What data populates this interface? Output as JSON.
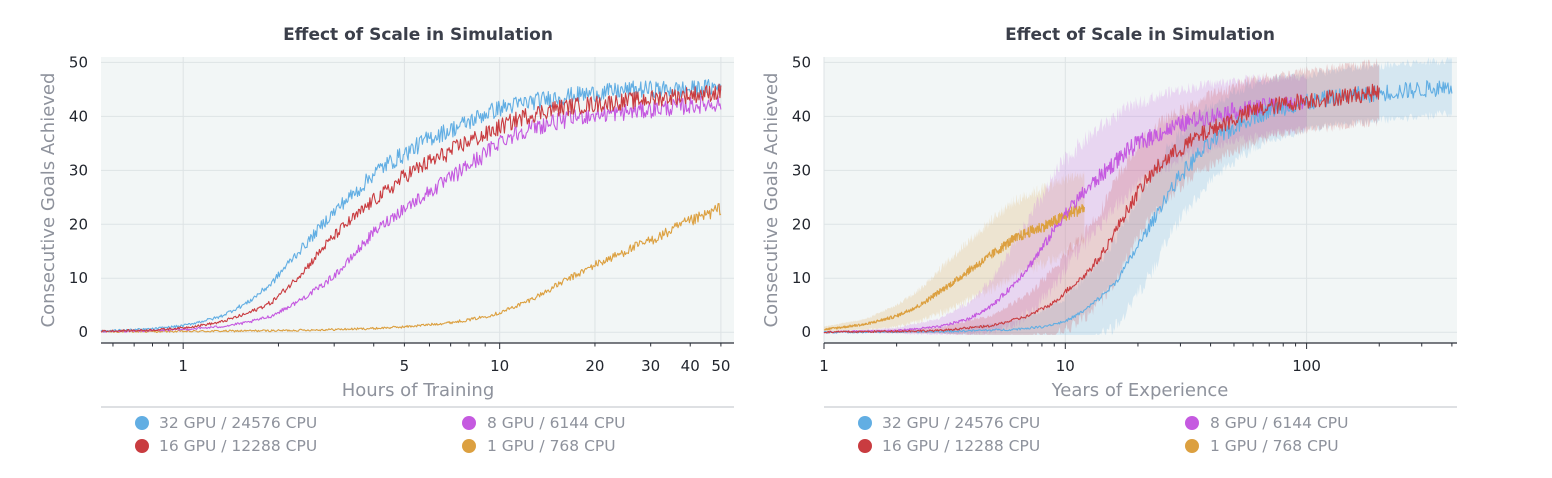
{
  "colors": {
    "series_1": "#62aee3",
    "series_2": "#c93c40",
    "series_3": "#c55ae0",
    "series_4": "#dca040",
    "plot_background": "#f2f6f6",
    "grid": "#dde3e5",
    "axis": "#2b2f38"
  },
  "chart_data": [
    {
      "type": "line",
      "title": "Effect of Scale in Simulation",
      "xlabel": "Hours of Training",
      "ylabel": "Consecutive Goals Achieved",
      "xscale": "log",
      "xlim": [
        0.55,
        55
      ],
      "ylim": [
        -2,
        51
      ],
      "xticks": [
        1,
        5,
        10,
        20,
        30,
        40,
        50
      ],
      "yticks": [
        0,
        10,
        20,
        30,
        40,
        50
      ],
      "grid": true,
      "legend_position": "bottom",
      "series": [
        {
          "name": "32 GPU / 24576 CPU",
          "color": "#62aee3",
          "x": [
            0.55,
            0.8,
            1,
            1.3,
            1.6,
            1.9,
            2.2,
            2.5,
            2.8,
            3.2,
            3.6,
            4,
            4.5,
            5,
            6,
            7,
            8,
            9,
            10,
            12,
            15,
            18,
            22,
            27,
            33,
            40,
            50
          ],
          "y": [
            0.2,
            0.6,
            1.2,
            2.8,
            5.5,
            9,
            13.5,
            17,
            20.5,
            24,
            26.5,
            29.5,
            31.5,
            33,
            36,
            37.5,
            39,
            40.5,
            41.5,
            42.5,
            43.5,
            44,
            44.5,
            45,
            45,
            45,
            45.5
          ]
        },
        {
          "name": "16 GPU / 12288 CPU",
          "color": "#c93c40",
          "x": [
            0.55,
            0.8,
            1,
            1.3,
            1.6,
            1.9,
            2.2,
            2.5,
            2.8,
            3.2,
            3.6,
            4,
            4.5,
            5,
            6,
            7,
            8,
            9,
            10,
            12,
            15,
            18,
            22,
            27,
            33,
            40,
            50
          ],
          "y": [
            0.2,
            0.4,
            0.8,
            1.8,
            3.5,
            5.5,
            9,
            12.5,
            16,
            19.5,
            22,
            24.5,
            26.5,
            29,
            31.5,
            33.5,
            35.5,
            36.5,
            38,
            40,
            41.5,
            42,
            42.5,
            43,
            43.5,
            44,
            44.5
          ]
        },
        {
          "name": "8 GPU / 6144 CPU",
          "color": "#c55ae0",
          "x": [
            0.55,
            0.8,
            1,
            1.3,
            1.6,
            1.9,
            2.2,
            2.5,
            2.8,
            3.2,
            3.6,
            4,
            4.5,
            5,
            6,
            7,
            8,
            9,
            10,
            12,
            15,
            18,
            22,
            27,
            33,
            40,
            50
          ],
          "y": [
            0.1,
            0.3,
            0.5,
            1,
            1.8,
            3,
            5,
            7,
            9,
            12,
            15.5,
            18.5,
            21,
            23,
            26,
            28.5,
            31,
            33,
            35.5,
            37.5,
            39,
            40,
            40.5,
            41,
            41.5,
            42,
            42.5
          ]
        },
        {
          "name": "1 GPU / 768 CPU",
          "color": "#dca040",
          "x": [
            0.55,
            1,
            2,
            3,
            4,
            5,
            6,
            7,
            8,
            9,
            10,
            12,
            14,
            16,
            18,
            20,
            23,
            26,
            30,
            34,
            38,
            42,
            46,
            50
          ],
          "y": [
            0.1,
            0.15,
            0.3,
            0.5,
            0.7,
            1,
            1.4,
            1.8,
            2.3,
            2.9,
            3.6,
            5.5,
            7.5,
            9.5,
            11,
            12.5,
            14,
            15.5,
            17,
            18.5,
            20,
            21,
            22,
            23
          ]
        }
      ]
    },
    {
      "type": "line",
      "title": "Effect of Scale in Simulation",
      "xlabel": "Years of Experience",
      "ylabel": "Consecutive Goals Achieved",
      "xscale": "log",
      "xlim": [
        1,
        420
      ],
      "ylim": [
        -2,
        51
      ],
      "xticks": [
        1,
        10,
        100
      ],
      "yticks": [
        0,
        10,
        20,
        30,
        40,
        50
      ],
      "grid": true,
      "legend_position": "bottom",
      "shaded_bands": true,
      "series": [
        {
          "name": "32 GPU / 24576 CPU",
          "color": "#62aee3",
          "x": [
            1,
            3,
            6,
            8,
            10,
            12,
            14,
            16,
            18,
            20,
            23,
            26,
            30,
            35,
            40,
            50,
            60,
            75,
            100,
            130,
            170,
            220,
            300,
            400
          ],
          "y": [
            0,
            0.1,
            0.5,
            1,
            2,
            4,
            6.5,
            9,
            12.5,
            16,
            20.5,
            25,
            29,
            32.5,
            35,
            38,
            40,
            41.5,
            42.5,
            43.5,
            44,
            44.5,
            45,
            45.5
          ],
          "band": [
            0,
            0.3,
            1.5,
            3,
            4.5,
            6,
            7,
            8,
            8.5,
            9,
            9,
            8.5,
            8,
            7.5,
            7,
            6.5,
            6,
            5.5,
            5,
            5,
            5,
            5,
            5,
            5
          ]
        },
        {
          "name": "16 GPU / 12288 CPU",
          "color": "#c93c40",
          "x": [
            1,
            3,
            5,
            7,
            9,
            10,
            12,
            14,
            16,
            18,
            20,
            23,
            26,
            30,
            35,
            40,
            50,
            60,
            75,
            100,
            130,
            160,
            200
          ],
          "y": [
            0,
            0.3,
            1.2,
            3,
            5.5,
            7.5,
            10.5,
            14,
            18.5,
            22.5,
            26,
            29.5,
            32,
            34,
            36,
            37.5,
            39.5,
            41,
            42,
            43,
            43.5,
            44,
            44.5
          ],
          "band": [
            0,
            0.5,
            2,
            4,
            6,
            7,
            8,
            8.5,
            9,
            9,
            8.5,
            8,
            7.5,
            7,
            6.5,
            6.5,
            6,
            6,
            5.5,
            5.5,
            5.5,
            5.5,
            5.5
          ]
        },
        {
          "name": "8 GPU / 6144 CPU",
          "color": "#c55ae0",
          "x": [
            1,
            2,
            3,
            4,
            5,
            6,
            7,
            8,
            9,
            10,
            12,
            14,
            16,
            18,
            20,
            25,
            30,
            35,
            40,
            50,
            60,
            75,
            100
          ],
          "y": [
            0,
            0.3,
            1,
            2.5,
            5,
            8.5,
            12,
            15.5,
            19,
            22,
            26,
            29,
            31.5,
            33.5,
            35,
            37,
            38.5,
            39.5,
            40,
            41,
            41.5,
            42,
            42.5
          ],
          "band": [
            0,
            0.5,
            1.5,
            3,
            5,
            7,
            8.5,
            9.5,
            10,
            10,
            9.5,
            9,
            8.5,
            8,
            7.5,
            7,
            6.5,
            6,
            6,
            5.5,
            5.5,
            5,
            5
          ]
        },
        {
          "name": "1 GPU / 768 CPU",
          "color": "#dca040",
          "x": [
            1,
            1.5,
            2,
            2.5,
            3,
            3.5,
            4,
            4.5,
            5,
            6,
            7,
            8,
            9,
            10,
            11,
            12
          ],
          "y": [
            0.5,
            1.5,
            3,
            5,
            7.5,
            9.5,
            11.5,
            13,
            14.5,
            17,
            18.5,
            19.5,
            20.5,
            21.5,
            22.5,
            23
          ],
          "band": [
            0.5,
            1,
            2,
            3,
            4,
            5,
            5.5,
            6,
            6.5,
            7,
            7,
            7,
            7,
            7,
            6.5,
            6
          ]
        }
      ]
    }
  ]
}
